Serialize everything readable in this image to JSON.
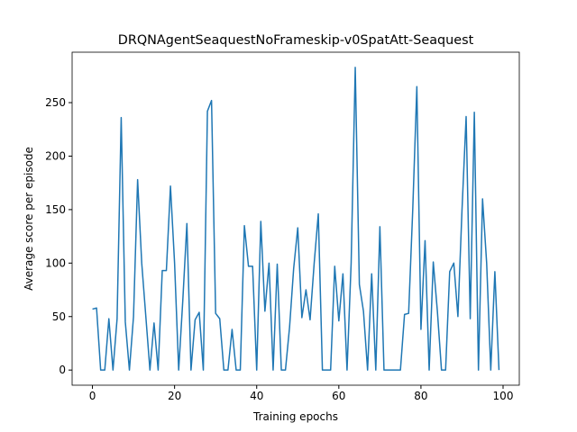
{
  "chart_data": {
    "type": "line",
    "title": "DRQNAgentSeaquestNoFrameskip-v0SpatAtt-Seaquest",
    "x_label": "Training epochs",
    "y_label": "Average score per episode",
    "x": [
      0,
      1,
      2,
      3,
      4,
      5,
      6,
      7,
      8,
      9,
      10,
      11,
      12,
      13,
      14,
      15,
      16,
      17,
      18,
      19,
      20,
      21,
      22,
      23,
      24,
      25,
      26,
      27,
      28,
      29,
      30,
      31,
      32,
      33,
      34,
      35,
      36,
      37,
      38,
      39,
      40,
      41,
      42,
      43,
      44,
      45,
      46,
      47,
      48,
      49,
      50,
      51,
      52,
      53,
      54,
      55,
      56,
      57,
      58,
      59,
      60,
      61,
      62,
      63,
      64,
      65,
      66,
      67,
      68,
      69,
      70,
      71,
      72,
      73,
      74,
      75,
      76,
      77,
      78,
      79,
      80,
      81,
      82,
      83,
      84,
      85,
      86,
      87,
      88,
      89,
      90,
      91,
      92,
      93,
      94,
      95,
      96,
      97,
      98,
      99
    ],
    "series": [
      {
        "color": "#1f77b4",
        "values": [
          57,
          58,
          0,
          0,
          48,
          0,
          48,
          236,
          45,
          0,
          50,
          178,
          100,
          50,
          0,
          44,
          0,
          93,
          93,
          172,
          100,
          0,
          65,
          137,
          0,
          47,
          54,
          0,
          242,
          252,
          53,
          48,
          0,
          0,
          38,
          0,
          0,
          135,
          97,
          97,
          0,
          139,
          55,
          100,
          0,
          99,
          0,
          0,
          40,
          95,
          133,
          49,
          75,
          47,
          100,
          146,
          0,
          0,
          0,
          97,
          46,
          90,
          0,
          100,
          283,
          80,
          55,
          0,
          90,
          0,
          134,
          0,
          0,
          0,
          0,
          0,
          52,
          53,
          150,
          265,
          38,
          121,
          0,
          101,
          55,
          0,
          0,
          92,
          100,
          50,
          150,
          237,
          48,
          241,
          0,
          160,
          100,
          0,
          92,
          0
        ]
      }
    ],
    "xlim": [
      -4.95,
      103.95
    ],
    "ylim": [
      -14.15,
      297.15
    ],
    "xticks": [
      0,
      20,
      40,
      60,
      80,
      100
    ],
    "yticks": [
      0,
      50,
      100,
      150,
      200,
      250
    ]
  }
}
